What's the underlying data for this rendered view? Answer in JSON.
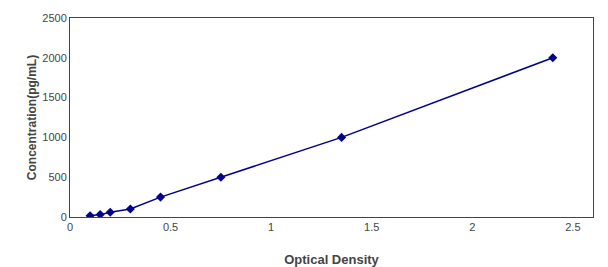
{
  "chart_data": {
    "type": "line",
    "x": [
      0.1,
      0.15,
      0.2,
      0.3,
      0.45,
      0.75,
      1.35,
      2.4
    ],
    "values": [
      15,
      30,
      60,
      100,
      250,
      500,
      1000,
      2000
    ],
    "color": "#00008B",
    "marker": "diamond",
    "xlabel": "Optical Density",
    "ylabel": "Concentration(pg/mL)",
    "xlim": [
      0.0,
      2.6
    ],
    "ylim": [
      0,
      2500
    ],
    "xticks": [
      0,
      0.5,
      1,
      1.5,
      2,
      2.5
    ],
    "yticks": [
      0,
      500,
      1000,
      1500,
      2000,
      2500
    ],
    "grid": false
  }
}
